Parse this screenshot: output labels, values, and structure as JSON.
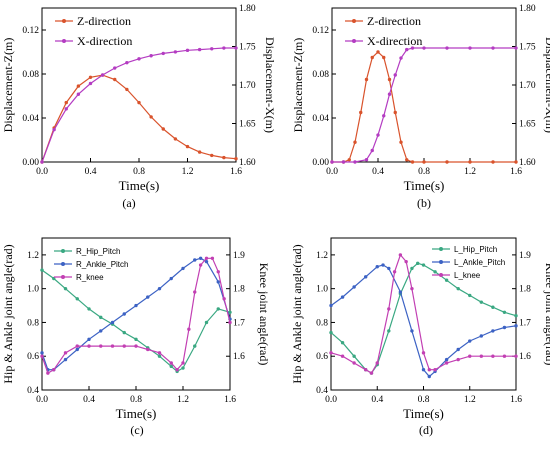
{
  "chart_data": [
    {
      "type": "line",
      "panel_label": "(a)",
      "xlabel": "Time(s)",
      "ylabel": "Displacement-Z(m)",
      "y2label": "Displacement-X(m)",
      "xlim": [
        0,
        1.6
      ],
      "ylim": [
        0,
        0.14
      ],
      "y2lim": [
        1.6,
        1.8
      ],
      "xticks": [
        "0.0",
        "0.4",
        "0.8",
        "1.2",
        "1.6"
      ],
      "yticks": [
        "0.00",
        "0.04",
        "0.08",
        "0.12"
      ],
      "y2ticks": [
        "1.60",
        "1.65",
        "1.70",
        "1.75",
        "1.80"
      ],
      "legend_position": "top-left",
      "series": [
        {
          "name": "Z-direction",
          "axis": "left",
          "color": "#d9532c",
          "x": [
            0,
            0.1,
            0.2,
            0.3,
            0.4,
            0.5,
            0.6,
            0.7,
            0.8,
            0.9,
            1.0,
            1.1,
            1.2,
            1.3,
            1.4,
            1.5,
            1.6
          ],
          "values": [
            0,
            0.031,
            0.054,
            0.069,
            0.077,
            0.079,
            0.075,
            0.066,
            0.054,
            0.041,
            0.03,
            0.021,
            0.014,
            0.009,
            0.006,
            0.004,
            0.003
          ]
        },
        {
          "name": "X-direction",
          "axis": "right",
          "color": "#b43cc2",
          "x": [
            0,
            0.1,
            0.2,
            0.3,
            0.4,
            0.5,
            0.6,
            0.7,
            0.8,
            0.9,
            1.0,
            1.1,
            1.2,
            1.3,
            1.4,
            1.5,
            1.6
          ],
          "values": [
            1.6,
            1.642,
            1.669,
            1.688,
            1.702,
            1.713,
            1.722,
            1.729,
            1.734,
            1.738,
            1.741,
            1.743,
            1.745,
            1.746,
            1.747,
            1.748,
            1.748
          ]
        }
      ]
    },
    {
      "type": "line",
      "panel_label": "(b)",
      "xlabel": "Time(s)",
      "ylabel": "Displacement-Z(m)",
      "y2label": "Displacement-X(m)",
      "xlim": [
        0,
        1.6
      ],
      "ylim": [
        0,
        0.14
      ],
      "y2lim": [
        1.6,
        1.8
      ],
      "xticks": [
        "0.0",
        "0.4",
        "0.8",
        "1.2",
        "1.6"
      ],
      "yticks": [
        "0.00",
        "0.04",
        "0.08",
        "0.12"
      ],
      "y2ticks": [
        "1.60",
        "1.65",
        "1.70",
        "1.75",
        "1.80"
      ],
      "legend_position": "top-left",
      "series": [
        {
          "name": "Z-direction",
          "axis": "left",
          "color": "#d9532c",
          "x": [
            0,
            0.1,
            0.15,
            0.2,
            0.25,
            0.3,
            0.35,
            0.4,
            0.45,
            0.5,
            0.55,
            0.6,
            0.65,
            0.7,
            0.8,
            1.0,
            1.2,
            1.4,
            1.6
          ],
          "values": [
            0,
            0,
            0.002,
            0.018,
            0.045,
            0.075,
            0.095,
            0.1,
            0.095,
            0.075,
            0.045,
            0.018,
            0.002,
            0,
            0,
            0,
            0,
            0,
            0
          ]
        },
        {
          "name": "X-direction",
          "axis": "right",
          "color": "#b43cc2",
          "x": [
            0,
            0.1,
            0.2,
            0.3,
            0.35,
            0.4,
            0.45,
            0.5,
            0.55,
            0.6,
            0.65,
            0.7,
            0.8,
            1.0,
            1.2,
            1.4,
            1.6
          ],
          "values": [
            1.6,
            1.6,
            1.6,
            1.603,
            1.615,
            1.635,
            1.66,
            1.688,
            1.713,
            1.735,
            1.746,
            1.748,
            1.748,
            1.748,
            1.748,
            1.748,
            1.748
          ]
        }
      ]
    },
    {
      "type": "line",
      "panel_label": "(c)",
      "xlabel": "Time(s)",
      "ylabel": "Hip & Ankle joint angle(rad)",
      "y2label": "Knee joint angle(rad)",
      "xlim": [
        0,
        1.6
      ],
      "ylim": [
        0.4,
        1.3
      ],
      "y2lim": [
        1.5,
        1.95
      ],
      "xticks": [
        "0.0",
        "0.4",
        "0.8",
        "1.2",
        "1.6"
      ],
      "yticks": [
        "0.4",
        "0.6",
        "0.8",
        "1.0",
        "1.2"
      ],
      "y2ticks": [
        "1.6",
        "1.7",
        "1.8",
        "1.9"
      ],
      "legend_position": "top-left",
      "series": [
        {
          "name": "R_Hip_Pitch",
          "axis": "left",
          "color": "#3aa882",
          "x": [
            0,
            0.1,
            0.2,
            0.3,
            0.4,
            0.5,
            0.6,
            0.7,
            0.8,
            0.9,
            1.0,
            1.1,
            1.15,
            1.2,
            1.3,
            1.4,
            1.5,
            1.6
          ],
          "values": [
            1.11,
            1.06,
            1.0,
            0.94,
            0.88,
            0.83,
            0.79,
            0.74,
            0.7,
            0.65,
            0.6,
            0.54,
            0.51,
            0.53,
            0.66,
            0.8,
            0.88,
            0.86
          ]
        },
        {
          "name": "R_Ankle_Pitch",
          "axis": "left",
          "color": "#3c62c4",
          "x": [
            0,
            0.05,
            0.1,
            0.2,
            0.3,
            0.4,
            0.5,
            0.6,
            0.7,
            0.8,
            0.9,
            1.0,
            1.1,
            1.2,
            1.3,
            1.35,
            1.4,
            1.5,
            1.6
          ],
          "values": [
            0.62,
            0.52,
            0.52,
            0.58,
            0.64,
            0.7,
            0.75,
            0.8,
            0.85,
            0.9,
            0.95,
            1.0,
            1.06,
            1.12,
            1.17,
            1.18,
            1.16,
            1.04,
            0.82
          ]
        },
        {
          "name": "R_knee",
          "axis": "right",
          "color": "#c23fb3",
          "x": [
            0,
            0.05,
            0.1,
            0.2,
            0.3,
            0.4,
            0.5,
            0.6,
            0.7,
            0.8,
            0.9,
            1.0,
            1.1,
            1.15,
            1.2,
            1.25,
            1.3,
            1.35,
            1.4,
            1.45,
            1.5,
            1.55,
            1.6
          ],
          "values": [
            1.6,
            1.55,
            1.56,
            1.61,
            1.63,
            1.63,
            1.63,
            1.63,
            1.63,
            1.63,
            1.62,
            1.61,
            1.58,
            1.56,
            1.58,
            1.68,
            1.79,
            1.87,
            1.89,
            1.89,
            1.85,
            1.77,
            1.7
          ]
        }
      ]
    },
    {
      "type": "line",
      "panel_label": "(d)",
      "xlabel": "Time(s)",
      "ylabel": "Hip & Ankle joint angle(rad)",
      "y2label": "Knee joint angle(rad)",
      "xlim": [
        0,
        1.6
      ],
      "ylim": [
        0.4,
        1.3
      ],
      "y2lim": [
        1.5,
        1.95
      ],
      "xticks": [
        "0.0",
        "0.4",
        "0.8",
        "1.2",
        "1.6"
      ],
      "yticks": [
        "0.4",
        "0.6",
        "0.8",
        "1.0",
        "1.2"
      ],
      "y2ticks": [
        "1.6",
        "1.7",
        "1.8",
        "1.9"
      ],
      "legend_position": "top-right",
      "series": [
        {
          "name": "L_Hip_Pitch",
          "axis": "left",
          "color": "#3aa882",
          "x": [
            0,
            0.1,
            0.2,
            0.3,
            0.35,
            0.4,
            0.5,
            0.6,
            0.7,
            0.75,
            0.8,
            0.9,
            1.0,
            1.1,
            1.2,
            1.3,
            1.4,
            1.5,
            1.6
          ],
          "values": [
            0.74,
            0.68,
            0.6,
            0.52,
            0.5,
            0.55,
            0.75,
            0.97,
            1.12,
            1.15,
            1.14,
            1.1,
            1.05,
            1.0,
            0.96,
            0.92,
            0.89,
            0.86,
            0.84
          ]
        },
        {
          "name": "L_Ankle_Pitch",
          "axis": "left",
          "color": "#3c62c4",
          "x": [
            0,
            0.1,
            0.2,
            0.3,
            0.4,
            0.45,
            0.5,
            0.6,
            0.7,
            0.8,
            0.85,
            0.9,
            1.0,
            1.1,
            1.2,
            1.3,
            1.4,
            1.5,
            1.6
          ],
          "values": [
            0.9,
            0.95,
            1.01,
            1.07,
            1.13,
            1.14,
            1.12,
            0.98,
            0.75,
            0.52,
            0.48,
            0.51,
            0.58,
            0.64,
            0.69,
            0.72,
            0.75,
            0.77,
            0.78
          ]
        },
        {
          "name": "L_knee",
          "axis": "right",
          "color": "#c23fb3",
          "x": [
            0,
            0.1,
            0.2,
            0.3,
            0.35,
            0.4,
            0.5,
            0.55,
            0.6,
            0.65,
            0.7,
            0.8,
            0.85,
            0.9,
            1.0,
            1.1,
            1.2,
            1.3,
            1.4,
            1.5,
            1.6
          ],
          "values": [
            1.61,
            1.6,
            1.58,
            1.56,
            1.55,
            1.58,
            1.74,
            1.85,
            1.9,
            1.88,
            1.8,
            1.61,
            1.56,
            1.56,
            1.58,
            1.59,
            1.6,
            1.6,
            1.6,
            1.6,
            1.6
          ]
        }
      ]
    }
  ]
}
